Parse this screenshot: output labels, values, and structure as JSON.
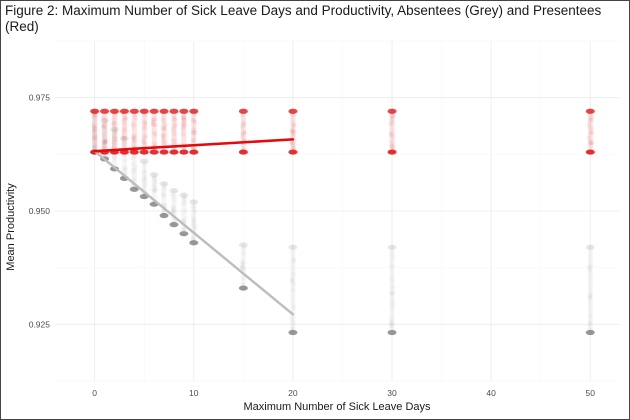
{
  "chart_data": {
    "type": "scatter",
    "title": "Figure 2: Maximum Number of Sick Leave Days and Productivity, Absentees (Grey) and Presentees (Red)",
    "xlabel": "Maximum Number of Sick Leave Days",
    "ylabel": "Mean Productivity",
    "xlim": [
      -4,
      53
    ],
    "ylim": [
      0.9125,
      0.9875
    ],
    "x_ticks": [
      0,
      10,
      20,
      30,
      40,
      50
    ],
    "y_ticks": [
      0.925,
      0.95,
      0.975
    ],
    "y_tick_labels": [
      "0.925",
      "0.950",
      "0.975"
    ],
    "grid": true,
    "legend": "none",
    "x_levels": [
      0,
      1,
      2,
      3,
      4,
      5,
      6,
      7,
      8,
      9,
      10,
      15,
      20,
      30,
      50
    ],
    "series": [
      {
        "color": "#e41a1c",
        "points": [
          {
            "x": 0,
            "low": 0.963,
            "high": 0.972
          },
          {
            "x": 1,
            "low": 0.963,
            "high": 0.972
          },
          {
            "x": 2,
            "low": 0.963,
            "high": 0.972
          },
          {
            "x": 3,
            "low": 0.963,
            "high": 0.972
          },
          {
            "x": 4,
            "low": 0.963,
            "high": 0.972
          },
          {
            "x": 5,
            "low": 0.963,
            "high": 0.972
          },
          {
            "x": 6,
            "low": 0.963,
            "high": 0.972
          },
          {
            "x": 7,
            "low": 0.963,
            "high": 0.972
          },
          {
            "x": 8,
            "low": 0.963,
            "high": 0.972
          },
          {
            "x": 9,
            "low": 0.963,
            "high": 0.972
          },
          {
            "x": 10,
            "low": 0.963,
            "high": 0.972
          },
          {
            "x": 15,
            "low": 0.963,
            "high": 0.972
          },
          {
            "x": 20,
            "low": 0.963,
            "high": 0.972
          },
          {
            "x": 30,
            "low": 0.963,
            "high": 0.972
          },
          {
            "x": 50,
            "low": 0.963,
            "high": 0.972
          }
        ],
        "trend": {
          "x": [
            0,
            20
          ],
          "y": [
            0.9632,
            0.9658
          ]
        }
      },
      {
        "color": "#aaaaaa",
        "points": [
          {
            "x": 0,
            "low": 0.963,
            "high": 0.972
          },
          {
            "x": 1,
            "low": 0.9615,
            "high": 0.97
          },
          {
            "x": 2,
            "low": 0.9593,
            "high": 0.968
          },
          {
            "x": 3,
            "low": 0.9572,
            "high": 0.966
          },
          {
            "x": 4,
            "low": 0.9548,
            "high": 0.9635
          },
          {
            "x": 5,
            "low": 0.9532,
            "high": 0.961
          },
          {
            "x": 6,
            "low": 0.9515,
            "high": 0.958
          },
          {
            "x": 7,
            "low": 0.949,
            "high": 0.956
          },
          {
            "x": 8,
            "low": 0.947,
            "high": 0.9545
          },
          {
            "x": 9,
            "low": 0.945,
            "high": 0.9535
          },
          {
            "x": 10,
            "low": 0.943,
            "high": 0.952
          },
          {
            "x": 15,
            "low": 0.933,
            "high": 0.9425
          },
          {
            "x": 20,
            "low": 0.9232,
            "high": 0.942
          },
          {
            "x": 30,
            "low": 0.9232,
            "high": 0.942
          },
          {
            "x": 50,
            "low": 0.9232,
            "high": 0.942
          }
        ],
        "trend": {
          "x": [
            0,
            20
          ],
          "y": [
            0.9632,
            0.9272
          ]
        }
      }
    ]
  }
}
